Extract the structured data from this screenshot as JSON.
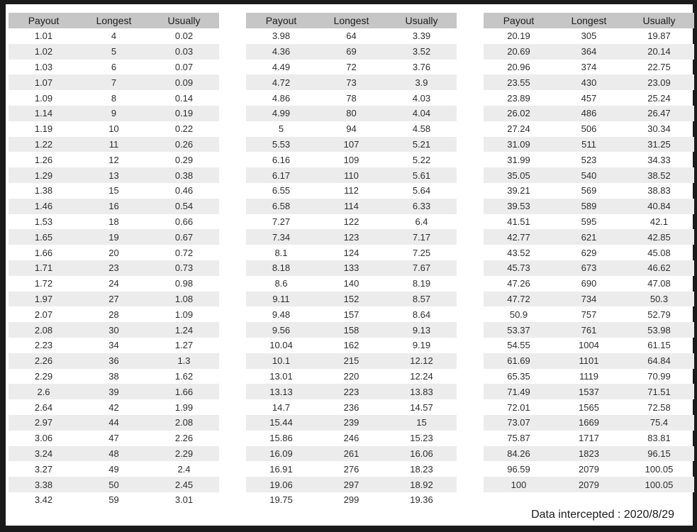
{
  "colors": {
    "frame": "#1a1a1a",
    "header_bg": "#c6c6c6",
    "stripe_bg": "#ececec",
    "text": "#2e2e2e"
  },
  "footer": {
    "text": "Data intercepted : 2020/8/29"
  },
  "tables": [
    {
      "columns": [
        "Payout",
        "Longest",
        "Usually"
      ],
      "rows": [
        [
          "1.01",
          "4",
          "0.02"
        ],
        [
          "1.02",
          "5",
          "0.03"
        ],
        [
          "1.03",
          "6",
          "0.07"
        ],
        [
          "1.07",
          "7",
          "0.09"
        ],
        [
          "1.09",
          "8",
          "0.14"
        ],
        [
          "1.14",
          "9",
          "0.19"
        ],
        [
          "1.19",
          "10",
          "0.22"
        ],
        [
          "1.22",
          "11",
          "0.26"
        ],
        [
          "1.26",
          "12",
          "0.29"
        ],
        [
          "1.29",
          "13",
          "0.38"
        ],
        [
          "1.38",
          "15",
          "0.46"
        ],
        [
          "1.46",
          "16",
          "0.54"
        ],
        [
          "1.53",
          "18",
          "0.66"
        ],
        [
          "1.65",
          "19",
          "0.67"
        ],
        [
          "1.66",
          "20",
          "0.72"
        ],
        [
          "1.71",
          "23",
          "0.73"
        ],
        [
          "1.72",
          "24",
          "0.98"
        ],
        [
          "1.97",
          "27",
          "1.08"
        ],
        [
          "2.07",
          "28",
          "1.09"
        ],
        [
          "2.08",
          "30",
          "1.24"
        ],
        [
          "2.23",
          "34",
          "1.27"
        ],
        [
          "2.26",
          "36",
          "1.3"
        ],
        [
          "2.29",
          "38",
          "1.62"
        ],
        [
          "2.6",
          "39",
          "1.66"
        ],
        [
          "2.64",
          "42",
          "1.99"
        ],
        [
          "2.97",
          "44",
          "2.08"
        ],
        [
          "3.06",
          "47",
          "2.26"
        ],
        [
          "3.24",
          "48",
          "2.29"
        ],
        [
          "3.27",
          "49",
          "2.4"
        ],
        [
          "3.38",
          "50",
          "2.45"
        ],
        [
          "3.42",
          "59",
          "3.01"
        ]
      ]
    },
    {
      "columns": [
        "Payout",
        "Longest",
        "Usually"
      ],
      "rows": [
        [
          "3.98",
          "64",
          "3.39"
        ],
        [
          "4.36",
          "69",
          "3.52"
        ],
        [
          "4.49",
          "72",
          "3.76"
        ],
        [
          "4.72",
          "73",
          "3.9"
        ],
        [
          "4.86",
          "78",
          "4.03"
        ],
        [
          "4.99",
          "80",
          "4.04"
        ],
        [
          "5",
          "94",
          "4.58"
        ],
        [
          "5.53",
          "107",
          "5.21"
        ],
        [
          "6.16",
          "109",
          "5.22"
        ],
        [
          "6.17",
          "110",
          "5.61"
        ],
        [
          "6.55",
          "112",
          "5.64"
        ],
        [
          "6.58",
          "114",
          "6.33"
        ],
        [
          "7.27",
          "122",
          "6.4"
        ],
        [
          "7.34",
          "123",
          "7.17"
        ],
        [
          "8.1",
          "124",
          "7.25"
        ],
        [
          "8.18",
          "133",
          "7.67"
        ],
        [
          "8.6",
          "140",
          "8.19"
        ],
        [
          "9.11",
          "152",
          "8.57"
        ],
        [
          "9.48",
          "157",
          "8.64"
        ],
        [
          "9.56",
          "158",
          "9.13"
        ],
        [
          "10.04",
          "162",
          "9.19"
        ],
        [
          "10.1",
          "215",
          "12.12"
        ],
        [
          "13.01",
          "220",
          "12.24"
        ],
        [
          "13.13",
          "223",
          "13.83"
        ],
        [
          "14.7",
          "236",
          "14.57"
        ],
        [
          "15.44",
          "239",
          "15"
        ],
        [
          "15.86",
          "246",
          "15.23"
        ],
        [
          "16.09",
          "261",
          "16.06"
        ],
        [
          "16.91",
          "276",
          "18.23"
        ],
        [
          "19.06",
          "297",
          "18.92"
        ],
        [
          "19.75",
          "299",
          "19.36"
        ]
      ]
    },
    {
      "columns": [
        "Payout",
        "Longest",
        "Usually"
      ],
      "rows": [
        [
          "20.19",
          "305",
          "19.87"
        ],
        [
          "20.69",
          "364",
          "20.14"
        ],
        [
          "20.96",
          "374",
          "22.75"
        ],
        [
          "23.55",
          "430",
          "23.09"
        ],
        [
          "23.89",
          "457",
          "25.24"
        ],
        [
          "26.02",
          "486",
          "26.47"
        ],
        [
          "27.24",
          "506",
          "30.34"
        ],
        [
          "31.09",
          "511",
          "31.25"
        ],
        [
          "31.99",
          "523",
          "34.33"
        ],
        [
          "35.05",
          "540",
          "38.52"
        ],
        [
          "39.21",
          "569",
          "38.83"
        ],
        [
          "39.53",
          "589",
          "40.84"
        ],
        [
          "41.51",
          "595",
          "42.1"
        ],
        [
          "42.77",
          "621",
          "42.85"
        ],
        [
          "43.52",
          "629",
          "45.08"
        ],
        [
          "45.73",
          "673",
          "46.62"
        ],
        [
          "47.26",
          "690",
          "47.08"
        ],
        [
          "47.72",
          "734",
          "50.3"
        ],
        [
          "50.9",
          "757",
          "52.79"
        ],
        [
          "53.37",
          "761",
          "53.98"
        ],
        [
          "54.55",
          "1004",
          "61.15"
        ],
        [
          "61.69",
          "1101",
          "64.84"
        ],
        [
          "65.35",
          "1119",
          "70.99"
        ],
        [
          "71.49",
          "1537",
          "71.51"
        ],
        [
          "72.01",
          "1565",
          "72.58"
        ],
        [
          "73.07",
          "1669",
          "75.4"
        ],
        [
          "75.87",
          "1717",
          "83.81"
        ],
        [
          "84.26",
          "1823",
          "96.15"
        ],
        [
          "96.59",
          "2079",
          "100.05"
        ],
        [
          "100",
          "2079",
          "100.05"
        ]
      ]
    }
  ]
}
